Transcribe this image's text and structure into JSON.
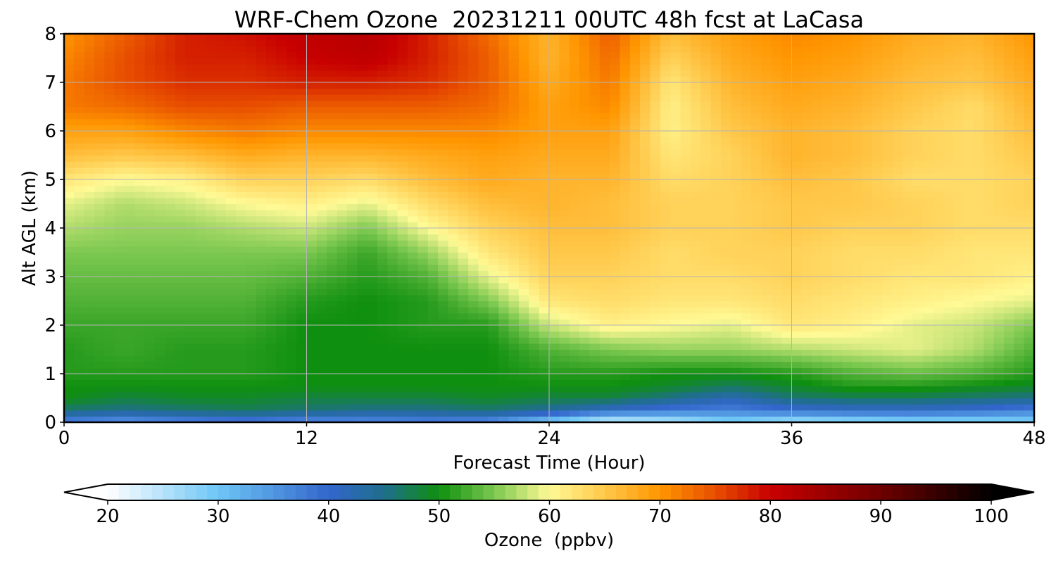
{
  "chart_data": {
    "type": "heatmap",
    "title": "WRF-Chem Ozone  20231211 00UTC 48h fcst at LaCasa",
    "xlabel": "Forecast Time (Hour)",
    "ylabel": "Alt AGL (km)",
    "xlim": [
      0,
      48
    ],
    "ylim": [
      0,
      8
    ],
    "xticks": [
      0,
      12,
      24,
      36,
      48
    ],
    "yticks": [
      0,
      1,
      2,
      3,
      4,
      5,
      6,
      7,
      8
    ],
    "grid": true,
    "colorbar": {
      "label": "Ozone  (ppbv)",
      "range": [
        20,
        100
      ],
      "ticks": [
        20,
        30,
        40,
        50,
        60,
        70,
        80,
        90,
        100
      ],
      "extend": "both",
      "color_stops": [
        {
          "v": 20,
          "c": "#ffffff"
        },
        {
          "v": 30,
          "c": "#6ec6f5"
        },
        {
          "v": 40,
          "c": "#3366cc"
        },
        {
          "v": 45,
          "c": "#1f6e8c"
        },
        {
          "v": 50,
          "c": "#0f8f0f"
        },
        {
          "v": 55,
          "c": "#7cc850"
        },
        {
          "v": 60,
          "c": "#fffa96"
        },
        {
          "v": 65,
          "c": "#ffc84a"
        },
        {
          "v": 70,
          "c": "#ff9600"
        },
        {
          "v": 75,
          "c": "#e84f00"
        },
        {
          "v": 80,
          "c": "#c80000"
        },
        {
          "v": 90,
          "c": "#6e0000"
        },
        {
          "v": 100,
          "c": "#000000"
        }
      ]
    },
    "levels": [
      0,
      0.25,
      0.5,
      0.75,
      1,
      1.5,
      2,
      2.5,
      3,
      3.5,
      4,
      4.5,
      5,
      5.5,
      6,
      6.5,
      7,
      7.5,
      8
    ],
    "times": [
      0,
      3,
      6,
      9,
      12,
      15,
      18,
      21,
      24,
      27,
      30,
      33,
      36,
      39,
      42,
      45,
      48
    ],
    "values": [
      [
        36,
        34,
        36,
        37,
        35,
        35,
        36,
        35,
        28,
        22,
        24,
        28,
        25,
        26,
        27,
        27,
        28
      ],
      [
        46,
        45,
        46,
        47,
        46,
        45,
        45,
        46,
        44,
        40,
        38,
        37,
        39,
        40,
        40,
        39,
        37
      ],
      [
        50,
        48,
        49,
        49,
        48,
        48,
        48,
        49,
        48,
        48,
        45,
        42,
        46,
        47,
        47,
        46,
        45
      ],
      [
        50,
        50,
        50,
        50,
        50,
        50,
        50,
        50,
        50,
        50,
        49,
        47,
        49,
        51,
        51,
        50,
        49
      ],
      [
        51,
        51,
        51,
        51,
        50,
        50,
        50,
        50,
        51,
        51,
        50,
        50,
        51,
        53,
        54,
        53,
        51
      ],
      [
        51,
        52,
        51,
        51,
        50,
        50,
        50,
        50,
        53,
        55,
        56,
        56,
        57,
        58,
        59,
        57,
        53
      ],
      [
        52,
        52,
        52,
        52,
        50,
        50,
        51,
        51,
        58,
        61,
        60,
        59,
        62,
        61,
        59,
        58,
        55
      ],
      [
        53,
        53,
        53,
        53,
        51,
        50,
        51,
        55,
        62,
        63,
        62,
        62,
        63,
        62,
        61,
        60,
        59
      ],
      [
        54,
        54,
        54,
        54,
        53,
        51,
        53,
        59,
        64,
        64,
        63,
        63,
        64,
        63,
        62,
        62,
        61
      ],
      [
        55,
        55,
        55,
        55,
        55,
        52,
        56,
        62,
        65,
        65,
        63,
        64,
        64,
        63,
        63,
        62,
        62
      ],
      [
        57,
        56,
        56,
        57,
        58,
        55,
        60,
        64,
        66,
        66,
        64,
        64,
        65,
        64,
        64,
        63,
        63
      ],
      [
        59,
        57,
        58,
        60,
        61,
        59,
        63,
        66,
        67,
        66,
        64,
        64,
        65,
        65,
        64,
        63,
        64
      ],
      [
        62,
        60,
        61,
        64,
        64,
        63,
        66,
        68,
        67,
        67,
        63,
        64,
        66,
        65,
        63,
        63,
        64
      ],
      [
        66,
        65,
        66,
        68,
        67,
        67,
        68,
        69,
        68,
        68,
        62,
        64,
        67,
        66,
        64,
        63,
        65
      ],
      [
        69,
        69,
        71,
        72,
        71,
        71,
        71,
        71,
        69,
        69,
        61,
        65,
        67,
        66,
        64,
        63,
        66
      ],
      [
        72,
        73,
        75,
        75,
        74,
        74,
        74,
        73,
        69,
        71,
        61,
        66,
        68,
        67,
        65,
        63,
        67
      ],
      [
        72,
        75,
        77,
        77,
        78,
        78,
        77,
        74,
        68,
        72,
        62,
        67,
        69,
        68,
        66,
        65,
        68
      ],
      [
        71,
        75,
        78,
        78,
        80,
        81,
        78,
        74,
        67,
        73,
        64,
        68,
        70,
        69,
        67,
        66,
        69
      ],
      [
        70,
        74,
        78,
        79,
        81,
        82,
        78,
        73,
        67,
        74,
        66,
        69,
        71,
        70,
        68,
        67,
        70
      ]
    ]
  }
}
